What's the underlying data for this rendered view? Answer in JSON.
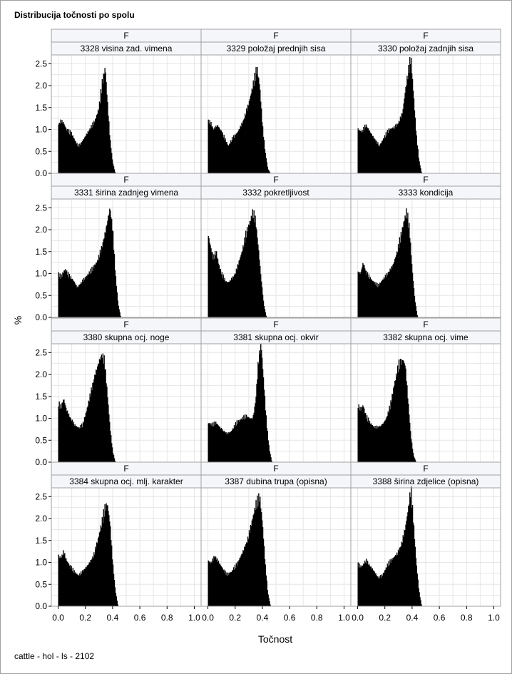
{
  "title": "Distribucija točnosti po spolu",
  "footer": "cattle - hol - ls - 2102",
  "chart_data": {
    "type": "histogram-panel",
    "title": "Distribucija točnosti po spolu",
    "xlabel": "Točnost",
    "ylabel": "%",
    "xlim": [
      -0.05,
      1.05
    ],
    "ylim": [
      0,
      2.7
    ],
    "x_ticks": [
      "0.0",
      "0.2",
      "0.4",
      "0.6",
      "0.8",
      "1.0"
    ],
    "y_ticks": [
      "0.0",
      "0.5",
      "1.0",
      "1.5",
      "2.0",
      "2.5"
    ],
    "grid": true,
    "bar_color": "#000000",
    "panel_header_color": "#f4f6fa",
    "panels": [
      {
        "sex": "F",
        "label": "3328 visina zad. vimena",
        "shape": [
          [
            0.0,
            1.1
          ],
          [
            0.02,
            1.2
          ],
          [
            0.04,
            1.15
          ],
          [
            0.06,
            1.0
          ],
          [
            0.08,
            0.95
          ],
          [
            0.1,
            0.9
          ],
          [
            0.13,
            0.7
          ],
          [
            0.15,
            0.62
          ],
          [
            0.17,
            0.7
          ],
          [
            0.2,
            0.85
          ],
          [
            0.23,
            1.0
          ],
          [
            0.27,
            1.2
          ],
          [
            0.3,
            1.5
          ],
          [
            0.32,
            2.0
          ],
          [
            0.345,
            2.43
          ],
          [
            0.36,
            1.7
          ],
          [
            0.38,
            0.8
          ],
          [
            0.4,
            0.25
          ],
          [
            0.42,
            0.0
          ]
        ]
      },
      {
        "sex": "F",
        "label": "3329 položaj prednjih sisa",
        "shape": [
          [
            0.0,
            1.2
          ],
          [
            0.02,
            1.15
          ],
          [
            0.04,
            1.0
          ],
          [
            0.07,
            1.1
          ],
          [
            0.1,
            0.95
          ],
          [
            0.13,
            0.75
          ],
          [
            0.15,
            0.62
          ],
          [
            0.18,
            0.8
          ],
          [
            0.22,
            0.95
          ],
          [
            0.26,
            1.2
          ],
          [
            0.3,
            1.6
          ],
          [
            0.33,
            2.0
          ],
          [
            0.36,
            2.4
          ],
          [
            0.38,
            2.0
          ],
          [
            0.4,
            1.1
          ],
          [
            0.42,
            0.5
          ],
          [
            0.44,
            0.1
          ],
          [
            0.46,
            0.0
          ]
        ]
      },
      {
        "sex": "F",
        "label": "3330 položaj zadnjih sisa",
        "shape": [
          [
            0.0,
            1.0
          ],
          [
            0.03,
            0.95
          ],
          [
            0.06,
            1.1
          ],
          [
            0.09,
            0.95
          ],
          [
            0.12,
            0.8
          ],
          [
            0.16,
            0.62
          ],
          [
            0.19,
            0.8
          ],
          [
            0.23,
            1.0
          ],
          [
            0.27,
            1.05
          ],
          [
            0.3,
            1.15
          ],
          [
            0.33,
            1.4
          ],
          [
            0.35,
            1.9
          ],
          [
            0.37,
            2.3
          ],
          [
            0.39,
            2.65
          ],
          [
            0.41,
            1.8
          ],
          [
            0.43,
            0.9
          ],
          [
            0.45,
            0.3
          ],
          [
            0.47,
            0.0
          ]
        ]
      },
      {
        "sex": "F",
        "label": "3331 širina zadnjeg vimena",
        "shape": [
          [
            0.0,
            1.0
          ],
          [
            0.02,
            0.92
          ],
          [
            0.05,
            1.1
          ],
          [
            0.08,
            0.95
          ],
          [
            0.11,
            0.85
          ],
          [
            0.14,
            0.68
          ],
          [
            0.17,
            0.8
          ],
          [
            0.21,
            0.95
          ],
          [
            0.25,
            1.1
          ],
          [
            0.29,
            1.3
          ],
          [
            0.32,
            1.6
          ],
          [
            0.35,
            2.0
          ],
          [
            0.38,
            2.5
          ],
          [
            0.4,
            2.0
          ],
          [
            0.42,
            1.0
          ],
          [
            0.44,
            0.3
          ],
          [
            0.46,
            0.0
          ]
        ]
      },
      {
        "sex": "F",
        "label": "3332 pokretljivost",
        "shape": [
          [
            0.0,
            1.9
          ],
          [
            0.02,
            1.6
          ],
          [
            0.04,
            1.35
          ],
          [
            0.06,
            1.5
          ],
          [
            0.08,
            1.2
          ],
          [
            0.1,
            1.0
          ],
          [
            0.13,
            0.82
          ],
          [
            0.15,
            0.8
          ],
          [
            0.18,
            0.9
          ],
          [
            0.2,
            1.0
          ],
          [
            0.22,
            1.2
          ],
          [
            0.25,
            1.5
          ],
          [
            0.28,
            1.9
          ],
          [
            0.31,
            2.2
          ],
          [
            0.33,
            2.4
          ],
          [
            0.35,
            2.2
          ],
          [
            0.37,
            1.6
          ],
          [
            0.39,
            0.9
          ],
          [
            0.41,
            0.3
          ],
          [
            0.43,
            0.0
          ]
        ]
      },
      {
        "sex": "F",
        "label": "3333 kondicija",
        "shape": [
          [
            0.0,
            1.05
          ],
          [
            0.02,
            1.0
          ],
          [
            0.04,
            1.25
          ],
          [
            0.06,
            1.05
          ],
          [
            0.09,
            0.9
          ],
          [
            0.12,
            0.8
          ],
          [
            0.15,
            0.72
          ],
          [
            0.18,
            0.85
          ],
          [
            0.22,
            1.0
          ],
          [
            0.26,
            1.2
          ],
          [
            0.29,
            1.5
          ],
          [
            0.32,
            1.9
          ],
          [
            0.34,
            2.2
          ],
          [
            0.36,
            2.42
          ],
          [
            0.38,
            2.0
          ],
          [
            0.4,
            1.1
          ],
          [
            0.42,
            0.4
          ],
          [
            0.44,
            0.0
          ]
        ]
      },
      {
        "sex": "F",
        "label": "3380 skupna ocj. noge",
        "shape": [
          [
            0.0,
            1.35
          ],
          [
            0.02,
            1.25
          ],
          [
            0.04,
            1.45
          ],
          [
            0.06,
            1.2
          ],
          [
            0.09,
            1.0
          ],
          [
            0.12,
            0.85
          ],
          [
            0.15,
            0.78
          ],
          [
            0.18,
            0.85
          ],
          [
            0.21,
            1.2
          ],
          [
            0.24,
            1.6
          ],
          [
            0.27,
            2.0
          ],
          [
            0.3,
            2.3
          ],
          [
            0.32,
            2.45
          ],
          [
            0.34,
            2.3
          ],
          [
            0.36,
            1.6
          ],
          [
            0.38,
            0.8
          ],
          [
            0.4,
            0.25
          ],
          [
            0.42,
            0.0
          ]
        ]
      },
      {
        "sex": "F",
        "label": "3381 skupna ocj. okvir",
        "shape": [
          [
            0.0,
            0.9
          ],
          [
            0.03,
            0.85
          ],
          [
            0.06,
            0.9
          ],
          [
            0.1,
            0.75
          ],
          [
            0.14,
            0.65
          ],
          [
            0.17,
            0.7
          ],
          [
            0.21,
            0.9
          ],
          [
            0.25,
            1.0
          ],
          [
            0.28,
            1.05
          ],
          [
            0.31,
            1.0
          ],
          [
            0.33,
            1.0
          ],
          [
            0.35,
            1.4
          ],
          [
            0.37,
            2.3
          ],
          [
            0.39,
            2.7
          ],
          [
            0.41,
            1.8
          ],
          [
            0.43,
            0.9
          ],
          [
            0.45,
            0.3
          ],
          [
            0.47,
            0.0
          ]
        ]
      },
      {
        "sex": "F",
        "label": "3382 skupna ocj. vime",
        "shape": [
          [
            0.0,
            1.3
          ],
          [
            0.02,
            1.2
          ],
          [
            0.04,
            1.3
          ],
          [
            0.06,
            1.05
          ],
          [
            0.09,
            0.9
          ],
          [
            0.12,
            0.8
          ],
          [
            0.15,
            0.8
          ],
          [
            0.18,
            0.85
          ],
          [
            0.21,
            1.0
          ],
          [
            0.24,
            1.3
          ],
          [
            0.27,
            1.8
          ],
          [
            0.3,
            2.2
          ],
          [
            0.33,
            2.35
          ],
          [
            0.35,
            2.2
          ],
          [
            0.37,
            1.4
          ],
          [
            0.39,
            0.6
          ],
          [
            0.41,
            0.15
          ],
          [
            0.43,
            0.0
          ]
        ]
      },
      {
        "sex": "F",
        "label": "3384 skupna ocj. mlj. karakter",
        "shape": [
          [
            0.0,
            1.15
          ],
          [
            0.02,
            1.1
          ],
          [
            0.04,
            1.25
          ],
          [
            0.06,
            1.05
          ],
          [
            0.09,
            0.9
          ],
          [
            0.12,
            0.78
          ],
          [
            0.15,
            0.7
          ],
          [
            0.18,
            0.8
          ],
          [
            0.22,
            0.95
          ],
          [
            0.26,
            1.15
          ],
          [
            0.29,
            1.5
          ],
          [
            0.32,
            1.9
          ],
          [
            0.34,
            2.2
          ],
          [
            0.36,
            2.35
          ],
          [
            0.38,
            1.9
          ],
          [
            0.4,
            1.0
          ],
          [
            0.42,
            0.35
          ],
          [
            0.44,
            0.0
          ]
        ]
      },
      {
        "sex": "F",
        "label": "3387 dubina trupa (opisna)",
        "shape": [
          [
            0.0,
            1.05
          ],
          [
            0.02,
            0.98
          ],
          [
            0.05,
            1.15
          ],
          [
            0.08,
            1.0
          ],
          [
            0.11,
            0.85
          ],
          [
            0.14,
            0.72
          ],
          [
            0.17,
            0.78
          ],
          [
            0.21,
            0.95
          ],
          [
            0.25,
            1.2
          ],
          [
            0.29,
            1.5
          ],
          [
            0.32,
            1.9
          ],
          [
            0.35,
            2.3
          ],
          [
            0.38,
            2.5
          ],
          [
            0.4,
            1.9
          ],
          [
            0.42,
            1.0
          ],
          [
            0.44,
            0.3
          ],
          [
            0.46,
            0.0
          ]
        ]
      },
      {
        "sex": "F",
        "label": "3388 širina zdjelice (opisna)",
        "shape": [
          [
            0.0,
            0.95
          ],
          [
            0.03,
            0.9
          ],
          [
            0.06,
            1.05
          ],
          [
            0.09,
            0.92
          ],
          [
            0.12,
            0.8
          ],
          [
            0.15,
            0.65
          ],
          [
            0.18,
            0.7
          ],
          [
            0.22,
            0.95
          ],
          [
            0.26,
            1.1
          ],
          [
            0.29,
            1.2
          ],
          [
            0.32,
            1.4
          ],
          [
            0.35,
            1.8
          ],
          [
            0.37,
            2.2
          ],
          [
            0.39,
            2.68
          ],
          [
            0.41,
            1.9
          ],
          [
            0.43,
            1.0
          ],
          [
            0.45,
            0.35
          ],
          [
            0.47,
            0.0
          ]
        ]
      }
    ]
  }
}
